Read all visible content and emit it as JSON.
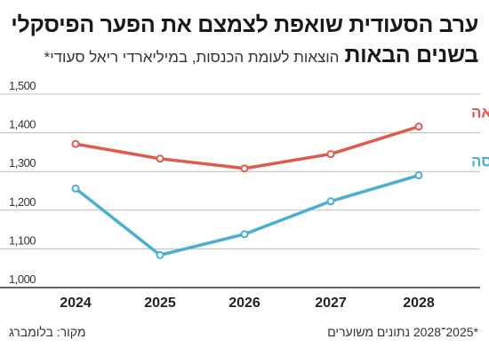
{
  "header": {
    "title_line1": "ערב הסעודית שואפת לצמצם את הפער הפיסקלי",
    "title_line2": "בשנים הבאות",
    "subtitle": "הוצאות לעומת הכנסות, במיליארדי ריאל סעודי*"
  },
  "footer": {
    "source": "מקור: בלומברג",
    "note": "*2025־2028 נתונים משוערים"
  },
  "colors": {
    "expenses": "#e05a4e",
    "revenue": "#4aafd0",
    "grid": "#bfbfbf",
    "baseline": "#333333"
  },
  "chart_data": {
    "type": "line",
    "title": "ערב הסעודית שואפת לצמצם את הפער הפיסקלי בשנים הבאות",
    "subtitle": "הוצאות לעומת הכנסות, במיליארדי ריאל סעודי*",
    "x": [
      "2024",
      "2025",
      "2026",
      "2027",
      "2028"
    ],
    "ylim": [
      1000,
      1500
    ],
    "yticks": [
      1000,
      1100,
      1200,
      1300,
      1400,
      1500
    ],
    "ytick_labels": [
      "1,000",
      "1,100",
      "1,200",
      "1,300",
      "1,400",
      "1,500"
    ],
    "grid": true,
    "series": [
      {
        "name": "הוצאה",
        "values": [
          1371,
          1333,
          1308,
          1345,
          1416
        ]
      },
      {
        "name": "הכנסה",
        "values": [
          1256,
          1084,
          1138,
          1223,
          1290
        ]
      }
    ]
  }
}
